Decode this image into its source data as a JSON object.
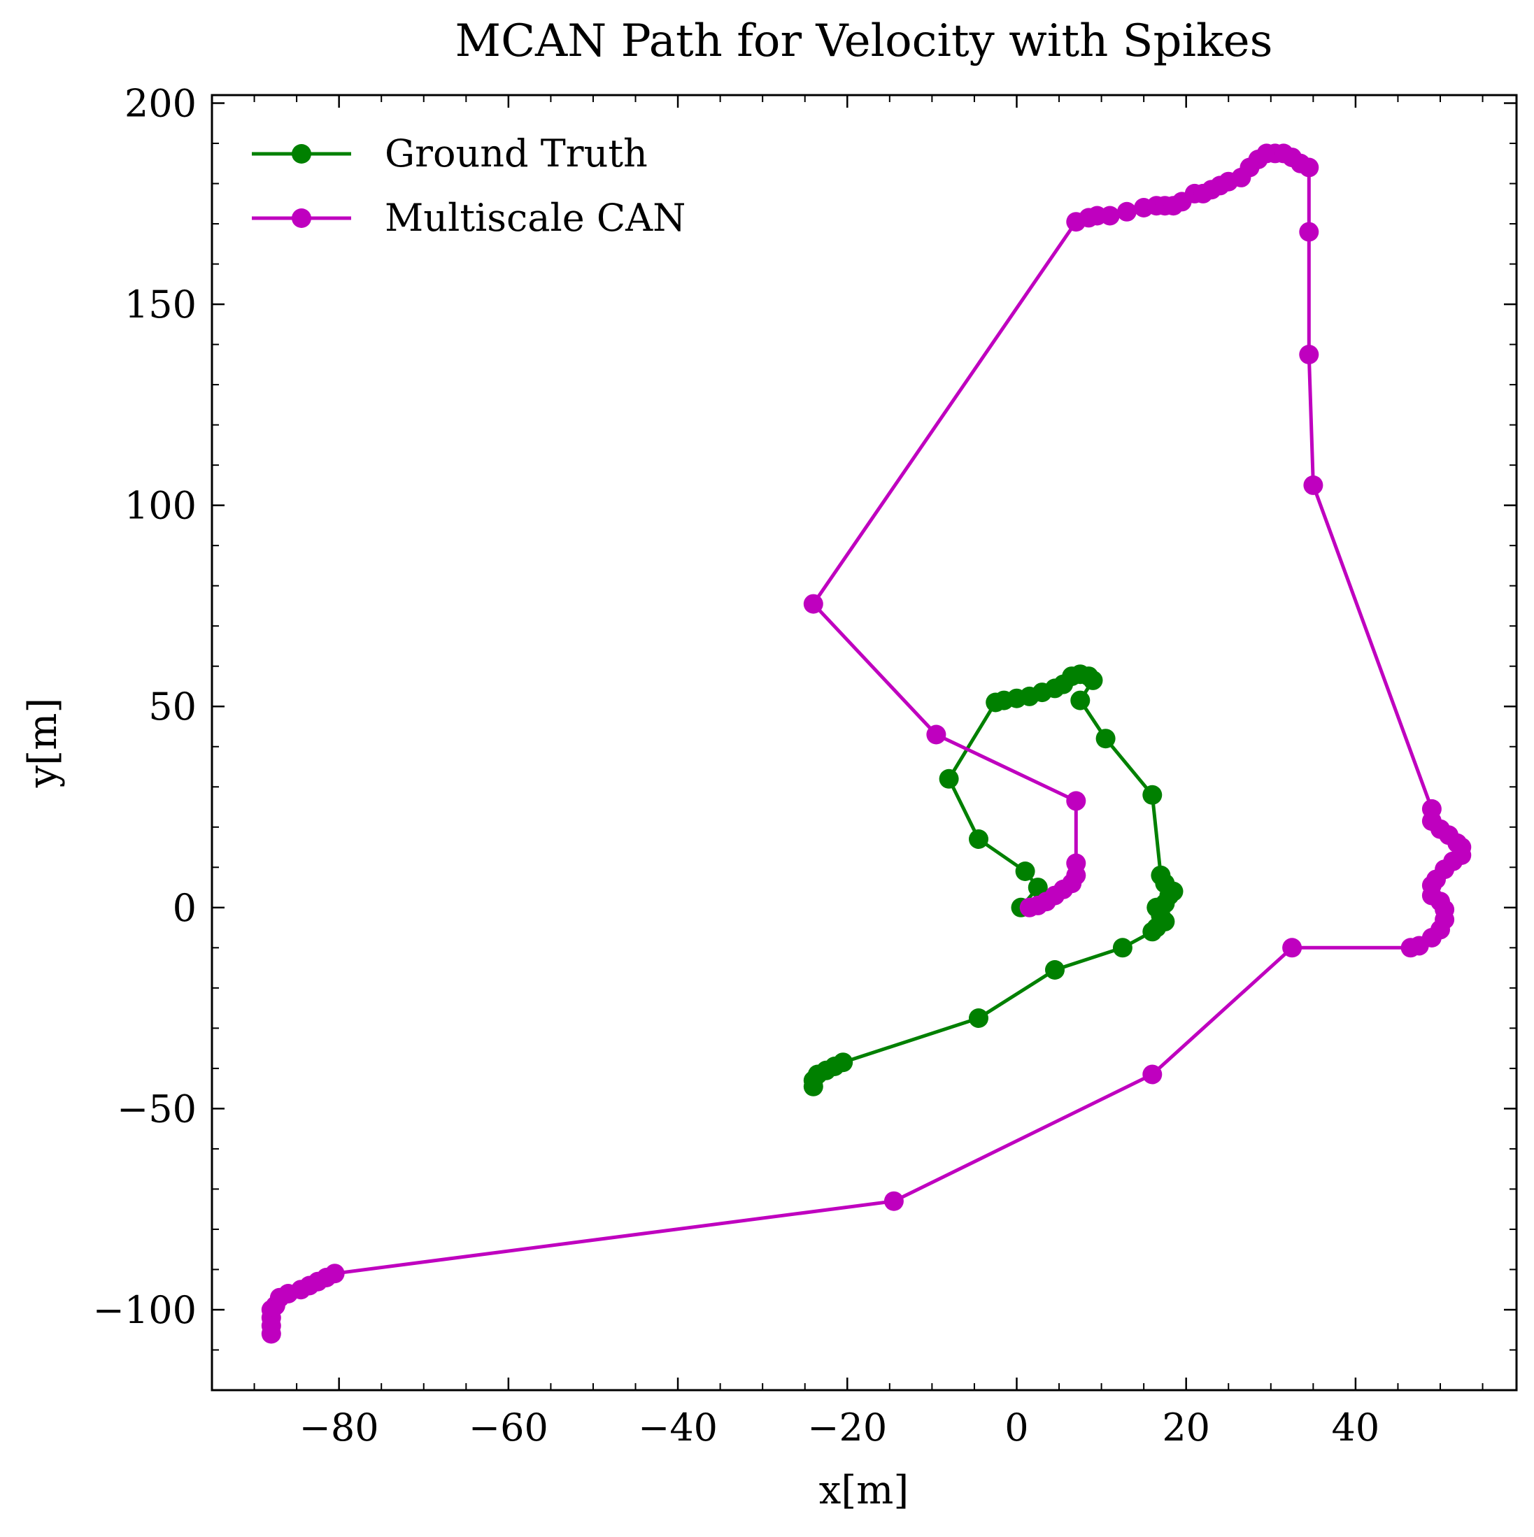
{
  "chart_data": {
    "type": "line",
    "title": "MCAN Path for Velocity with Spikes",
    "xlabel": "x[m]",
    "ylabel": "y[m]",
    "xlim": [
      -95,
      59
    ],
    "ylim": [
      -120,
      202
    ],
    "xticks": [
      -80,
      -60,
      -40,
      -20,
      0,
      20,
      40
    ],
    "yticks": [
      -100,
      -50,
      0,
      50,
      100,
      150,
      200
    ],
    "xtick_labels": [
      "−80",
      "−60",
      "−40",
      "−20",
      "0",
      "20",
      "40"
    ],
    "ytick_labels": [
      "−100",
      "−50",
      "0",
      "50",
      "100",
      "150",
      "200"
    ],
    "grid": false,
    "legend_position": "top-left",
    "series": [
      {
        "name": "Ground Truth",
        "color": "#008000",
        "marker": "circle",
        "points": [
          [
            0.5,
            0
          ],
          [
            2.5,
            5
          ],
          [
            1,
            9
          ],
          [
            -4.5,
            17
          ],
          [
            -8,
            32
          ],
          [
            -2.5,
            51
          ],
          [
            -1.5,
            51.5
          ],
          [
            0,
            52
          ],
          [
            1.5,
            52.5
          ],
          [
            3,
            53.5
          ],
          [
            4.5,
            54.5
          ],
          [
            5.5,
            55.5
          ],
          [
            6.5,
            57.5
          ],
          [
            7.5,
            58
          ],
          [
            8.5,
            57.5
          ],
          [
            9,
            56.5
          ],
          [
            7.5,
            51.5
          ],
          [
            10.5,
            42
          ],
          [
            16,
            28
          ],
          [
            17,
            8
          ],
          [
            17.5,
            6
          ],
          [
            18,
            3
          ],
          [
            18.5,
            4
          ],
          [
            17.5,
            1
          ],
          [
            16.5,
            0
          ],
          [
            17,
            -2
          ],
          [
            17.5,
            -3.5
          ],
          [
            16.5,
            -5
          ],
          [
            16,
            -6
          ],
          [
            12.5,
            -10
          ],
          [
            4.5,
            -15.5
          ],
          [
            -4.5,
            -27.5
          ],
          [
            -20.5,
            -38.5
          ],
          [
            -21.5,
            -39.5
          ],
          [
            -22.5,
            -40.5
          ],
          [
            -23.5,
            -41.5
          ],
          [
            -24,
            -43
          ],
          [
            -24,
            -44.5
          ]
        ]
      },
      {
        "name": "Multiscale CAN",
        "color": "#BF00BF",
        "marker": "circle",
        "points": [
          [
            1.5,
            0
          ],
          [
            2.5,
            0.5
          ],
          [
            3.5,
            1.5
          ],
          [
            4.5,
            3
          ],
          [
            5.5,
            4.5
          ],
          [
            6.5,
            6
          ],
          [
            7,
            8
          ],
          [
            7,
            11
          ],
          [
            7,
            26.5
          ],
          [
            -9.5,
            43
          ],
          [
            -24,
            75.5
          ],
          [
            7,
            170.5
          ],
          [
            8.5,
            171.5
          ],
          [
            9.5,
            172
          ],
          [
            11,
            172
          ],
          [
            13,
            173
          ],
          [
            15,
            174
          ],
          [
            16.5,
            174.5
          ],
          [
            17.5,
            174.5
          ],
          [
            18.5,
            174.5
          ],
          [
            19.5,
            175.5
          ],
          [
            21,
            177.5
          ],
          [
            22,
            177.5
          ],
          [
            23,
            178.5
          ],
          [
            24,
            179.5
          ],
          [
            25,
            180.5
          ],
          [
            26.5,
            181.5
          ],
          [
            27.5,
            184
          ],
          [
            28.5,
            186
          ],
          [
            29.5,
            187.5
          ],
          [
            30.5,
            187.5
          ],
          [
            31.5,
            187.5
          ],
          [
            32.5,
            186.5
          ],
          [
            33.5,
            185
          ],
          [
            34.5,
            184
          ],
          [
            34.5,
            168
          ],
          [
            34.5,
            137.5
          ],
          [
            35,
            105
          ],
          [
            49,
            24.5
          ],
          [
            49,
            21.5
          ],
          [
            50,
            19.5
          ],
          [
            51,
            18
          ],
          [
            52,
            16
          ],
          [
            52.5,
            15
          ],
          [
            52.5,
            13
          ],
          [
            51.5,
            11.5
          ],
          [
            50.5,
            9.5
          ],
          [
            49.5,
            7
          ],
          [
            49,
            5.5
          ],
          [
            49,
            3
          ],
          [
            50,
            1.5
          ],
          [
            50.5,
            -0.5
          ],
          [
            50.5,
            -3
          ],
          [
            50,
            -5.5
          ],
          [
            49,
            -7.5
          ],
          [
            47.5,
            -9.5
          ],
          [
            46.5,
            -10
          ],
          [
            32.5,
            -10
          ],
          [
            16,
            -41.5
          ],
          [
            -14.5,
            -73
          ],
          [
            -80.5,
            -91
          ],
          [
            -81.5,
            -92
          ],
          [
            -82.5,
            -93
          ],
          [
            -83.5,
            -94
          ],
          [
            -84.5,
            -95
          ],
          [
            -86,
            -96
          ],
          [
            -87,
            -97
          ],
          [
            -87.5,
            -99
          ],
          [
            -88,
            -100
          ],
          [
            -88,
            -102
          ],
          [
            -88,
            -104
          ],
          [
            -88,
            -106
          ]
        ]
      }
    ]
  }
}
